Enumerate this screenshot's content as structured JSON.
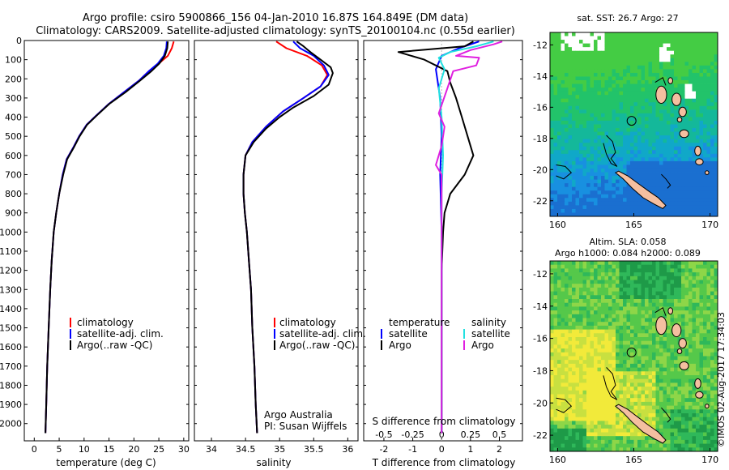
{
  "header": {
    "title_line1": "Argo profile: csiro 5900866_156 04-Jan-2010 16.87S 164.849E (DM data)",
    "title_line2": "Climatology: CARS2009. Satellite-adjusted climatology: synTS_20100104.nc (0.55d earlier)"
  },
  "colors": {
    "climatology": "#ff0000",
    "satellite": "#0000ff",
    "argo": "#000000",
    "sal_satellite": "#22e0e0",
    "sal_argo": "#e020e0"
  },
  "depth_axis": {
    "ticks": [
      0,
      100,
      200,
      300,
      400,
      500,
      600,
      700,
      800,
      900,
      1000,
      1100,
      1200,
      1300,
      1400,
      1500,
      1600,
      1700,
      1800,
      1900,
      2000
    ],
    "range": [
      0,
      2090
    ]
  },
  "chart_data": [
    {
      "id": "temperature",
      "type": "line",
      "xlabel": "temperature (deg C)",
      "xlim": [
        -2,
        31
      ],
      "xticks": [
        0,
        5,
        10,
        15,
        20,
        25,
        30
      ],
      "legend": [
        "climatology",
        "satellite-adj. clim.",
        "Argo(..raw -QC)"
      ],
      "series": [
        {
          "name": "climatology",
          "color": "#ff0000",
          "points": [
            [
              28,
              5
            ],
            [
              27.6,
              40
            ],
            [
              26.8,
              80
            ],
            [
              25,
              120
            ],
            [
              23,
              160
            ],
            [
              21,
              210
            ],
            [
              18,
              270
            ],
            [
              15,
              330
            ],
            [
              12.5,
              390
            ],
            [
              10.5,
              440
            ],
            [
              9,
              500
            ],
            [
              7.8,
              560
            ],
            [
              6.5,
              620
            ],
            [
              5.7,
              700
            ],
            [
              5,
              800
            ],
            [
              4.4,
              900
            ],
            [
              3.9,
              1000
            ],
            [
              3.5,
              1150
            ],
            [
              3.2,
              1300
            ],
            [
              2.9,
              1500
            ],
            [
              2.6,
              1700
            ],
            [
              2.4,
              1900
            ],
            [
              2.25,
              2050
            ]
          ]
        },
        {
          "name": "satellite-adj. clim.",
          "color": "#0000ff",
          "points": [
            [
              26.6,
              5
            ],
            [
              26.5,
              40
            ],
            [
              26,
              80
            ],
            [
              24.8,
              120
            ],
            [
              23,
              160
            ],
            [
              21,
              210
            ],
            [
              18,
              270
            ],
            [
              15,
              330
            ],
            [
              12.5,
              390
            ],
            [
              10.5,
              440
            ],
            [
              9,
              500
            ],
            [
              7.8,
              560
            ],
            [
              6.5,
              620
            ],
            [
              5.7,
              700
            ],
            [
              5,
              800
            ],
            [
              4.4,
              900
            ],
            [
              3.9,
              1000
            ],
            [
              3.5,
              1150
            ],
            [
              3.2,
              1300
            ],
            [
              2.9,
              1500
            ],
            [
              2.6,
              1700
            ],
            [
              2.4,
              1900
            ],
            [
              2.25,
              2050
            ]
          ]
        },
        {
          "name": "Argo(..raw -QC)",
          "color": "#000000",
          "points": [
            [
              26.8,
              5
            ],
            [
              26.7,
              40
            ],
            [
              26.2,
              80
            ],
            [
              25.1,
              120
            ],
            [
              23.5,
              160
            ],
            [
              21.2,
              210
            ],
            [
              18.3,
              270
            ],
            [
              15.1,
              330
            ],
            [
              12.6,
              390
            ],
            [
              10.6,
              440
            ],
            [
              9.1,
              500
            ],
            [
              7.9,
              560
            ],
            [
              6.6,
              620
            ],
            [
              5.8,
              700
            ],
            [
              5,
              800
            ],
            [
              4.4,
              900
            ],
            [
              3.9,
              1000
            ],
            [
              3.5,
              1150
            ],
            [
              3.2,
              1300
            ],
            [
              2.9,
              1500
            ],
            [
              2.6,
              1700
            ],
            [
              2.4,
              1900
            ],
            [
              2.25,
              2050
            ]
          ]
        }
      ]
    },
    {
      "id": "salinity",
      "type": "line",
      "xlabel": "salinity",
      "xlim": [
        33.75,
        36.15
      ],
      "xticks": [
        34,
        34.5,
        35,
        35.5,
        36
      ],
      "legend": [
        "climatology",
        "satellite-adj. clim.",
        "Argo(..raw -QC)"
      ],
      "annotation": [
        "Argo Australia",
        "PI: Susan Wijffels"
      ],
      "series": [
        {
          "name": "climatology",
          "color": "#ff0000",
          "points": [
            [
              34.95,
              5
            ],
            [
              35.1,
              40
            ],
            [
              35.4,
              80
            ],
            [
              35.62,
              130
            ],
            [
              35.7,
              180
            ],
            [
              35.6,
              240
            ],
            [
              35.35,
              300
            ],
            [
              35.05,
              370
            ],
            [
              34.8,
              450
            ],
            [
              34.6,
              530
            ],
            [
              34.5,
              600
            ],
            [
              34.47,
              700
            ],
            [
              34.47,
              800
            ],
            [
              34.49,
              900
            ],
            [
              34.52,
              1000
            ],
            [
              34.55,
              1150
            ],
            [
              34.58,
              1300
            ],
            [
              34.6,
              1500
            ],
            [
              34.63,
              1700
            ],
            [
              34.65,
              1900
            ],
            [
              34.67,
              2050
            ]
          ]
        },
        {
          "name": "satellite-adj. clim.",
          "color": "#0000ff",
          "points": [
            [
              35.2,
              5
            ],
            [
              35.3,
              40
            ],
            [
              35.5,
              80
            ],
            [
              35.65,
              130
            ],
            [
              35.72,
              180
            ],
            [
              35.6,
              240
            ],
            [
              35.35,
              300
            ],
            [
              35.05,
              370
            ],
            [
              34.8,
              450
            ],
            [
              34.6,
              530
            ],
            [
              34.5,
              600
            ],
            [
              34.47,
              700
            ],
            [
              34.47,
              800
            ],
            [
              34.49,
              900
            ],
            [
              34.52,
              1000
            ],
            [
              34.55,
              1150
            ],
            [
              34.58,
              1300
            ],
            [
              34.6,
              1500
            ],
            [
              34.63,
              1700
            ],
            [
              34.65,
              1900
            ],
            [
              34.67,
              2050
            ]
          ]
        },
        {
          "name": "Argo(..raw -QC)",
          "color": "#000000",
          "points": [
            [
              35.25,
              5
            ],
            [
              35.35,
              30
            ],
            [
              35.45,
              60
            ],
            [
              35.6,
              100
            ],
            [
              35.75,
              140
            ],
            [
              35.78,
              170
            ],
            [
              35.72,
              230
            ],
            [
              35.5,
              290
            ],
            [
              35.2,
              350
            ],
            [
              35,
              400
            ],
            [
              34.8,
              460
            ],
            [
              34.62,
              530
            ],
            [
              34.5,
              600
            ],
            [
              34.47,
              700
            ],
            [
              34.47,
              800
            ],
            [
              34.49,
              900
            ],
            [
              34.52,
              1000
            ],
            [
              34.55,
              1150
            ],
            [
              34.58,
              1300
            ],
            [
              34.6,
              1500
            ],
            [
              34.63,
              1700
            ],
            [
              34.65,
              1900
            ],
            [
              34.67,
              2050
            ]
          ]
        }
      ]
    },
    {
      "id": "difference",
      "type": "line",
      "xlabel": "T difference from climatology",
      "xlabel_top": "S difference from climatology",
      "xlim": [
        -2.7,
        2.8
      ],
      "xticks": [
        -2,
        -1,
        0,
        1,
        2
      ],
      "top_ticks": [
        {
          "label": "-0.5",
          "at": -2
        },
        {
          "label": "-0.25",
          "at": -1
        },
        {
          "label": "0",
          "at": 0
        },
        {
          "label": "0.25",
          "at": 1
        },
        {
          "label": "0.5",
          "at": 2
        }
      ],
      "legend_temperature": {
        "title": "temperature",
        "items": [
          "satellite",
          "Argo"
        ]
      },
      "legend_salinity": {
        "title": "salinity",
        "items": [
          "satellite",
          "Argo"
        ]
      },
      "series": [
        {
          "name": "T satellite",
          "color": "#0000ff",
          "points": [
            [
              1.3,
              5
            ],
            [
              0.6,
              40
            ],
            [
              0,
              80
            ],
            [
              -0.2,
              150
            ],
            [
              -0.05,
              300
            ],
            [
              0,
              500
            ],
            [
              -0.05,
              700
            ],
            [
              0,
              1000
            ],
            [
              0,
              1500
            ],
            [
              0,
              2050
            ]
          ]
        },
        {
          "name": "T Argo",
          "color": "#000000",
          "points": [
            [
              1.1,
              5
            ],
            [
              0.8,
              30
            ],
            [
              -1.5,
              60
            ],
            [
              -0.6,
              100
            ],
            [
              0.2,
              160
            ],
            [
              0.3,
              220
            ],
            [
              0.5,
              300
            ],
            [
              0.7,
              400
            ],
            [
              0.9,
              500
            ],
            [
              1.1,
              600
            ],
            [
              0.8,
              700
            ],
            [
              0.3,
              800
            ],
            [
              0.1,
              900
            ],
            [
              0.05,
              1000
            ],
            [
              0,
              1200
            ],
            [
              0,
              1500
            ],
            [
              0,
              2050
            ]
          ]
        },
        {
          "name": "S satellite",
          "color": "#22e0e0",
          "points": [
            [
              1.8,
              5
            ],
            [
              1.2,
              30
            ],
            [
              0.3,
              60
            ],
            [
              -0.1,
              90
            ],
            [
              0.1,
              150
            ],
            [
              -0.1,
              250
            ],
            [
              0,
              400
            ],
            [
              0.05,
              600
            ],
            [
              0,
              800
            ],
            [
              0,
              1000
            ],
            [
              0,
              2050
            ]
          ]
        },
        {
          "name": "S Argo",
          "color": "#e020e0",
          "points": [
            [
              2.1,
              5
            ],
            [
              1.8,
              20
            ],
            [
              1,
              50
            ],
            [
              0.5,
              80
            ],
            [
              1.3,
              90
            ],
            [
              1.2,
              130
            ],
            [
              0.4,
              160
            ],
            [
              0.2,
              250
            ],
            [
              -0.1,
              380
            ],
            [
              0.1,
              450
            ],
            [
              0,
              550
            ],
            [
              -0.2,
              650
            ],
            [
              0,
              700
            ],
            [
              0,
              800
            ],
            [
              0,
              1000
            ],
            [
              0,
              2050
            ]
          ]
        }
      ]
    },
    {
      "id": "sst_map",
      "type": "heatmap",
      "title": "sat. SST: 26.7  Argo: 27",
      "xticks": [
        160,
        165,
        170
      ],
      "yticks": [
        -12,
        -14,
        -16,
        -18,
        -20,
        -22
      ],
      "xlim": [
        159.5,
        170.5
      ],
      "ylim": [
        -23,
        -11.2
      ],
      "argo_position": [
        164.849,
        -16.87
      ]
    },
    {
      "id": "sla_map",
      "type": "heatmap",
      "title_line1": "Altim. SLA: 0.058",
      "title_line2": "Argo h1000: 0.084 h2000: 0.089",
      "xticks": [
        160,
        165,
        170
      ],
      "yticks": [
        -12,
        -14,
        -16,
        -18,
        -20,
        -22
      ],
      "xlim": [
        159.5,
        170.5
      ],
      "ylim": [
        -23,
        -11.2
      ],
      "argo_position": [
        164.849,
        -16.87
      ]
    }
  ],
  "side_credit": "©IMOS 02-Aug-2017 17:34:03"
}
